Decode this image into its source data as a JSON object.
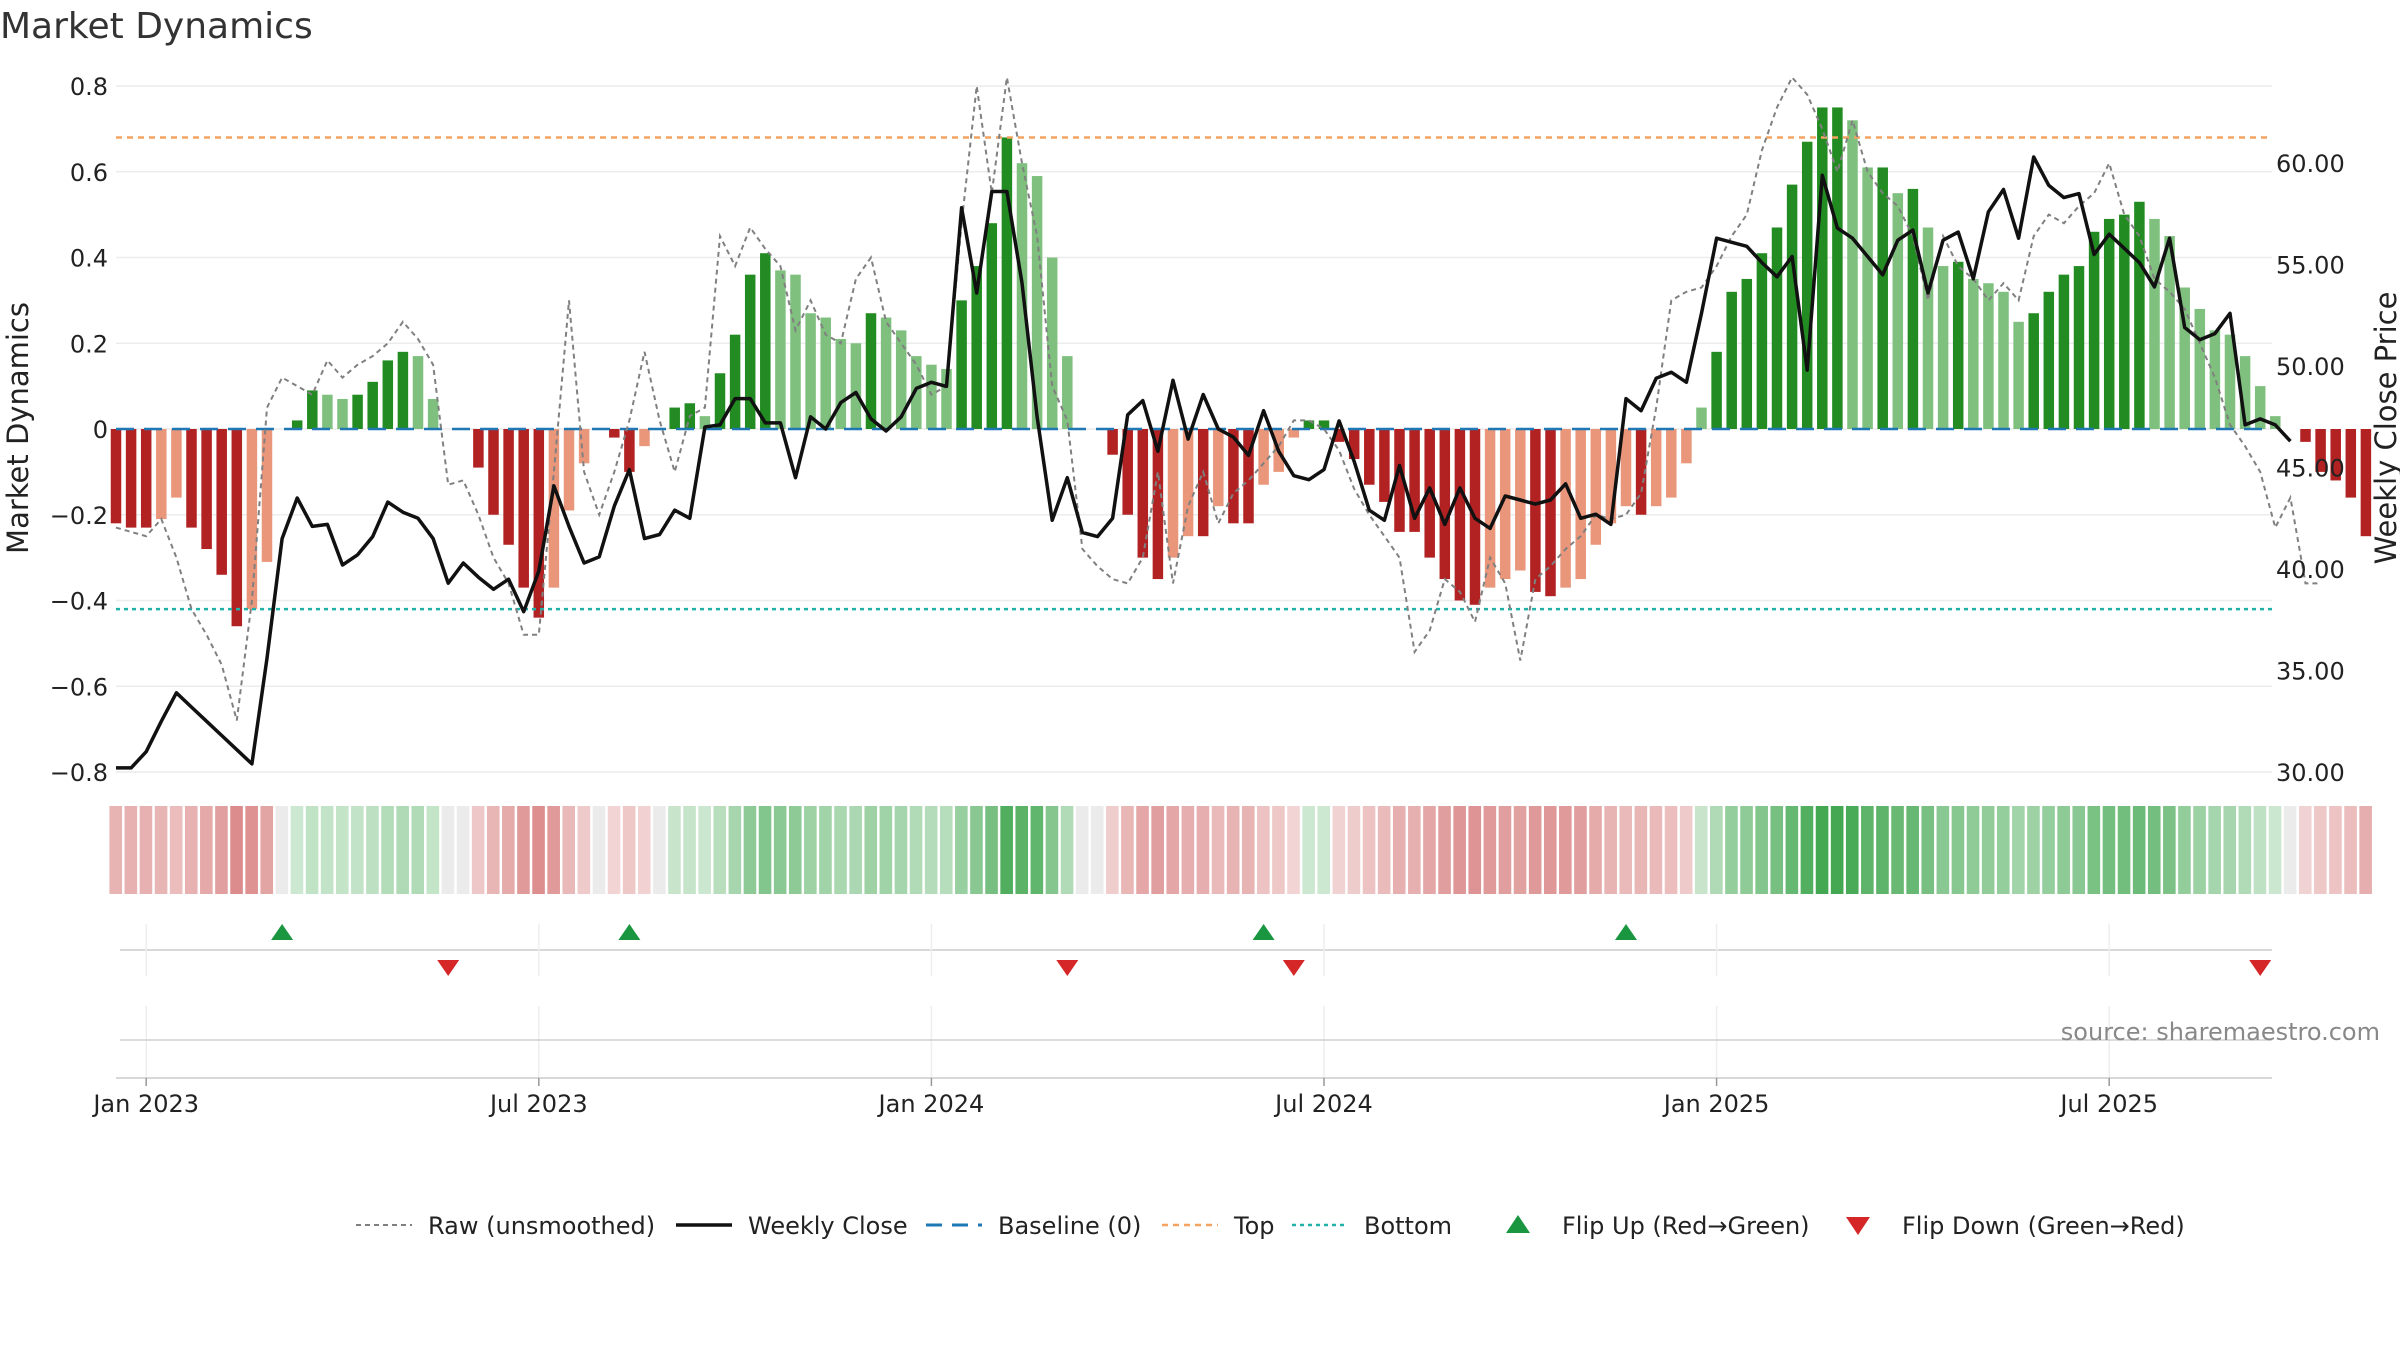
{
  "chart_data": {
    "type": "bar",
    "title": "Market Dynamics",
    "ylabel_left": "Market Dynamics",
    "ylabel_right": "Weekly Close Price",
    "left_ticks": [
      "0.8",
      "0.6",
      "0.4",
      "0.2",
      "0",
      "−0.2",
      "−0.4",
      "−0.6",
      "−0.8"
    ],
    "left_tick_values": [
      0.8,
      0.6,
      0.4,
      0.2,
      0,
      -0.2,
      -0.4,
      -0.6,
      -0.8
    ],
    "right_ticks": [
      "60.00",
      "55.00",
      "50.00",
      "45.00",
      "40.00",
      "35.00",
      "30.00"
    ],
    "right_tick_values": [
      60,
      55,
      50,
      45,
      40,
      35,
      30
    ],
    "ylim_left": [
      -0.8,
      0.8
    ],
    "ylim_right": [
      30,
      63.8
    ],
    "x_ticks": [
      "Jan 2023",
      "Jul 2023",
      "Jan 2024",
      "Jul 2024",
      "Jan 2025",
      "Jul 2025"
    ],
    "x_tick_weeks": [
      2,
      28,
      54,
      80,
      106,
      132
    ],
    "reference_lines": {
      "top": 0.68,
      "bottom": -0.42,
      "baseline": 0
    },
    "colors": {
      "green_dark": "#228b22",
      "green_light": "#7fc07f",
      "red_dark": "#b22222",
      "red_light": "#e9967a",
      "close_line": "#111111",
      "raw_line": "#808080",
      "baseline": "#1f77b4",
      "top": "#f4a460",
      "bottom": "#20b2aa",
      "flip_up": "#1a9641",
      "flip_down": "#d62728"
    },
    "dynamics": [
      -0.22,
      -0.23,
      -0.23,
      -0.21,
      -0.16,
      -0.23,
      -0.28,
      -0.34,
      -0.46,
      -0.42,
      -0.31,
      0,
      0.02,
      0.09,
      0.08,
      0.07,
      0.08,
      0.11,
      0.16,
      0.18,
      0.17,
      0.07,
      0,
      0,
      -0.09,
      -0.2,
      -0.27,
      -0.37,
      -0.44,
      -0.37,
      -0.19,
      -0.08,
      0,
      -0.02,
      -0.1,
      -0.04,
      0,
      0.05,
      0.06,
      0.03,
      0.13,
      0.22,
      0.36,
      0.41,
      0.37,
      0.36,
      0.27,
      0.26,
      0.21,
      0.2,
      0.27,
      0.26,
      0.23,
      0.17,
      0.15,
      0.14,
      0.3,
      0.38,
      0.48,
      0.68,
      0.62,
      0.59,
      0.4,
      0.17,
      0,
      0,
      -0.06,
      -0.2,
      -0.3,
      -0.35,
      -0.3,
      -0.25,
      -0.25,
      -0.18,
      -0.22,
      -0.22,
      -0.13,
      -0.1,
      -0.02,
      0.02,
      0.02,
      -0.03,
      -0.07,
      -0.13,
      -0.17,
      -0.24,
      -0.24,
      -0.3,
      -0.35,
      -0.4,
      -0.41,
      -0.37,
      -0.35,
      -0.33,
      -0.38,
      -0.39,
      -0.37,
      -0.35,
      -0.27,
      -0.22,
      -0.18,
      -0.2,
      -0.18,
      -0.16,
      -0.08,
      0.05,
      0.18,
      0.32,
      0.35,
      0.41,
      0.47,
      0.57,
      0.67,
      0.75,
      0.75,
      0.72,
      0.61,
      0.61,
      0.55,
      0.56,
      0.47,
      0.38,
      0.39,
      0.35,
      0.34,
      0.32,
      0.25,
      0.27,
      0.32,
      0.36,
      0.38,
      0.46,
      0.49,
      0.5,
      0.53,
      0.49,
      0.45,
      0.33,
      0.28,
      0.23,
      0.22,
      0.17,
      0.1,
      0.03,
      0,
      -0.03,
      -0.1,
      -0.12,
      -0.16,
      -0.25
    ],
    "close": [
      30.2,
      30.2,
      31,
      32.5,
      33.9,
      33.2,
      32.5,
      31.8,
      31.1,
      30.4,
      35.6,
      41.5,
      43.5,
      42.1,
      42.2,
      40.2,
      40.7,
      41.6,
      43.3,
      42.8,
      42.5,
      41.5,
      39.3,
      40.3,
      39.6,
      39,
      39.5,
      37.9,
      39.9,
      44.1,
      42.1,
      40.3,
      40.6,
      43.1,
      44.9,
      41.5,
      41.7,
      42.9,
      42.5,
      47,
      47.1,
      48.4,
      48.4,
      47.2,
      47.2,
      44.5,
      47.5,
      46.9,
      48.2,
      48.7,
      47.4,
      46.8,
      47.5,
      48.9,
      49.2,
      49,
      57.8,
      53.6,
      58.6,
      58.6,
      54.1,
      47.5,
      42.4,
      44.5,
      41.8,
      41.6,
      42.5,
      47.6,
      48.3,
      45.8,
      49.3,
      46.4,
      48.6,
      46.9,
      46.5,
      45.6,
      47.8,
      45.8,
      44.6,
      44.4,
      44.9,
      47.3,
      45.3,
      42.9,
      42.4,
      45.1,
      42.5,
      44,
      42.2,
      44,
      42.5,
      42,
      43.6,
      43.4,
      43.2,
      43.4,
      44.2,
      42.5,
      42.7,
      42.2,
      48.4,
      47.8,
      49.4,
      49.7,
      49.2,
      52.6,
      56.3,
      56.1,
      55.9,
      55.1,
      54.4,
      55.4,
      49.8,
      59.4,
      56.8,
      56.3,
      55.4,
      54.5,
      56.2,
      56.7,
      53.6,
      56.2,
      56.6,
      54.3,
      57.6,
      58.7,
      56.3,
      60.3,
      58.9,
      58.3,
      58.5,
      55.5,
      56.5,
      55.8,
      55.1,
      53.9,
      56.3,
      51.9,
      51.3,
      51.6,
      52.6,
      47.1,
      47.4,
      47.1,
      46.3
    ],
    "raw": [
      -0.23,
      -0.24,
      -0.25,
      -0.21,
      -0.3,
      -0.42,
      -0.48,
      -0.55,
      -0.68,
      -0.4,
      0.05,
      0.12,
      0.1,
      0.08,
      0.16,
      0.12,
      0.15,
      0.17,
      0.2,
      0.25,
      0.21,
      0.15,
      -0.13,
      -0.12,
      -0.2,
      -0.3,
      -0.36,
      -0.48,
      -0.48,
      -0.1,
      0.3,
      -0.1,
      -0.2,
      -0.1,
      0.02,
      0.18,
      0.02,
      -0.1,
      0.03,
      0.05,
      0.45,
      0.38,
      0.47,
      0.42,
      0.38,
      0.23,
      0.3,
      0.22,
      0.2,
      0.35,
      0.4,
      0.25,
      0.2,
      0.15,
      0.08,
      0.1,
      0.48,
      0.8,
      0.55,
      0.82,
      0.62,
      0.45,
      0.1,
      0.02,
      -0.28,
      -0.32,
      -0.35,
      -0.36,
      -0.3,
      -0.1,
      -0.36,
      -0.18,
      -0.1,
      -0.22,
      -0.15,
      -0.12,
      -0.08,
      -0.04,
      0.02,
      0.02,
      0,
      -0.05,
      -0.14,
      -0.2,
      -0.25,
      -0.3,
      -0.52,
      -0.47,
      -0.35,
      -0.38,
      -0.45,
      -0.3,
      -0.36,
      -0.54,
      -0.35,
      -0.32,
      -0.28,
      -0.25,
      -0.2,
      -0.21,
      -0.2,
      -0.15,
      0.05,
      0.3,
      0.32,
      0.33,
      0.38,
      0.45,
      0.5,
      0.65,
      0.75,
      0.82,
      0.78,
      0.7,
      0.6,
      0.72,
      0.6,
      0.55,
      0.52,
      0.45,
      0.3,
      0.45,
      0.38,
      0.35,
      0.3,
      0.34,
      0.3,
      0.45,
      0.5,
      0.48,
      0.52,
      0.55,
      0.62,
      0.5,
      0.45,
      0.35,
      0.32,
      0.28,
      0.2,
      0.12,
      0.01,
      -0.04,
      -0.1,
      -0.23,
      -0.16,
      -0.36,
      -0.36
    ],
    "flip_up_weeks": [
      11,
      34,
      76,
      100
    ],
    "flip_down_weeks": [
      22,
      63,
      78,
      142
    ],
    "legend": [
      "Raw (unsmoothed)",
      "Weekly Close",
      "Baseline (0)",
      "Top",
      "Bottom",
      "Flip Up (Red→Green)",
      "Flip Down (Green→Red)"
    ],
    "source": "source: sharemaestro.com"
  }
}
